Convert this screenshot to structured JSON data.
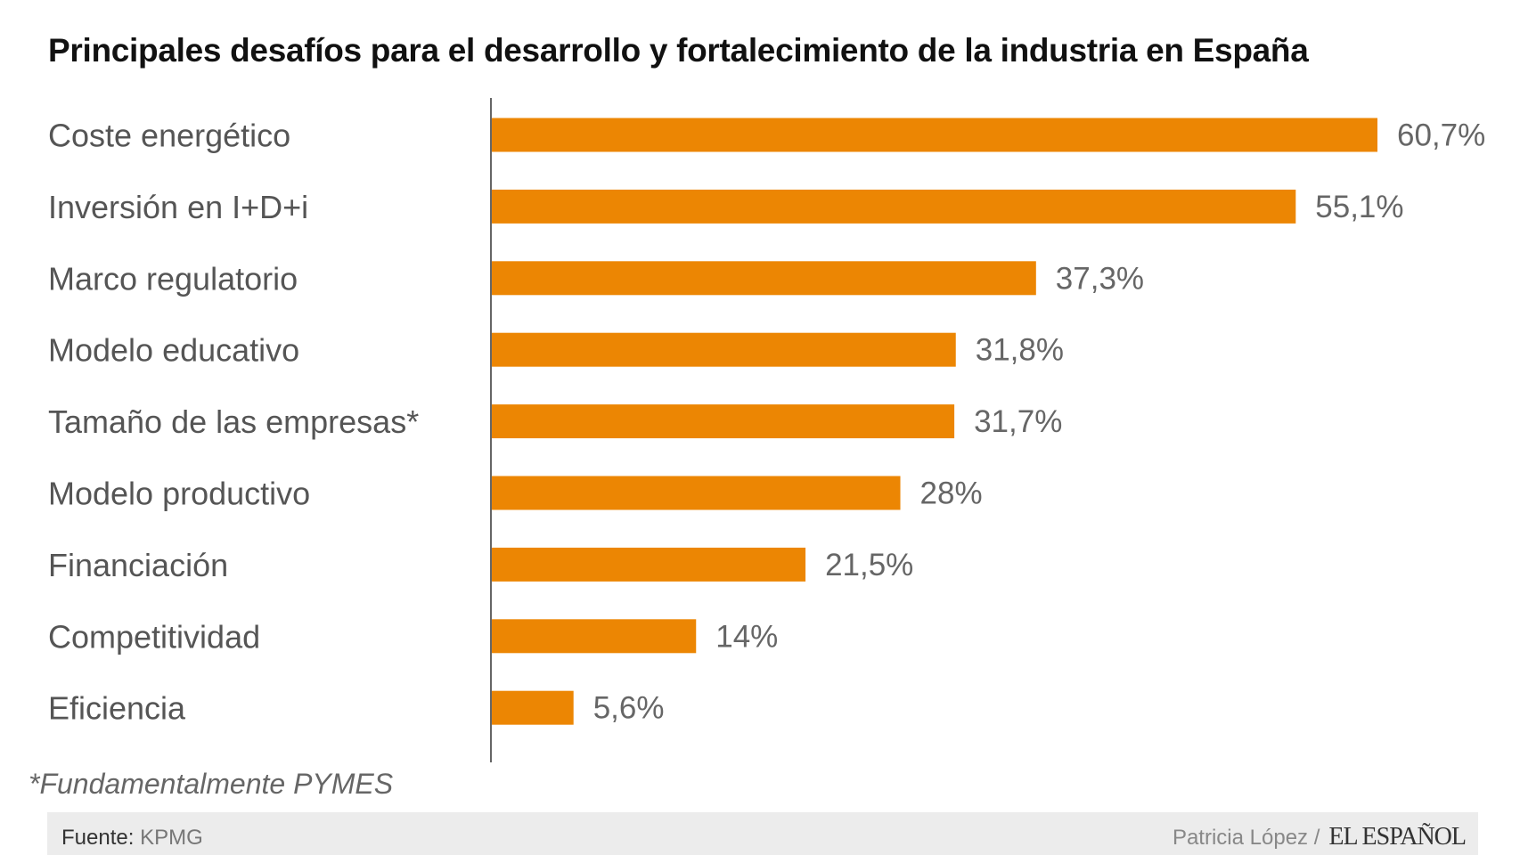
{
  "chart_data": {
    "type": "bar",
    "orientation": "horizontal",
    "title": "Principales desafíos para el desarrollo y fortalecimiento de la industria en España",
    "categories": [
      "Coste energético",
      "Inversión en I+D+i",
      "Marco regulatorio",
      "Modelo educativo",
      "Tamaño de las empresas*",
      "Modelo productivo",
      "Financiación",
      "Competitividad",
      "Eficiencia"
    ],
    "values": [
      60.7,
      55.1,
      37.3,
      31.8,
      31.7,
      28,
      21.5,
      14,
      5.6
    ],
    "data_labels": [
      "60,7%",
      "55,1%",
      "37,3%",
      "31,8%",
      "31,7%",
      "28%",
      "21,5%",
      "14%",
      "5,6%"
    ],
    "xlim": [
      0,
      60.7
    ],
    "grid": false,
    "bar_color": "#EC8603"
  },
  "note": "*Fundamentalmente PYMES",
  "footer": {
    "source_label": "Fuente:",
    "source": "KPMG",
    "author": "Patricia López /",
    "logo": "EL ESPAÑOL"
  }
}
